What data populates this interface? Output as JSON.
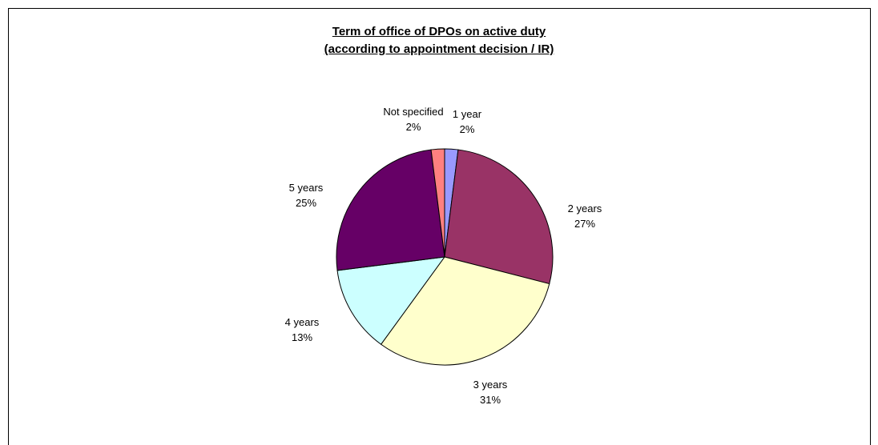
{
  "chart_data": {
    "type": "pie",
    "title_line1": "Term of office of DPOs on active duty",
    "title_line2": "(according to appointment decision / IR)",
    "slices": [
      {
        "label": "1 year",
        "value": 2,
        "value_label": "2%",
        "color": "#9999FF"
      },
      {
        "label": "2 years",
        "value": 27,
        "value_label": "27%",
        "color": "#993366"
      },
      {
        "label": "3 years",
        "value": 31,
        "value_label": "31%",
        "color": "#FFFFCC"
      },
      {
        "label": "4 years",
        "value": 13,
        "value_label": "13%",
        "color": "#CCFFFF"
      },
      {
        "label": "5 years",
        "value": 25,
        "value_label": "25%",
        "color": "#660066"
      },
      {
        "label": "Not specified",
        "value": 2,
        "value_label": "2%",
        "color": "#FF8080"
      }
    ]
  }
}
